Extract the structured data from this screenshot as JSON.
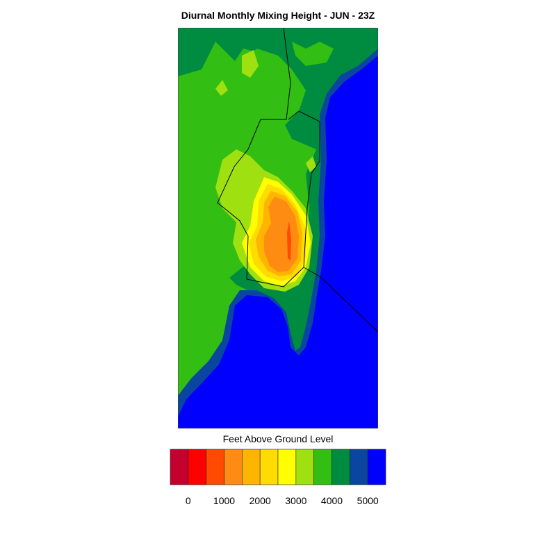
{
  "title": "Diurnal Monthly Mixing Height - JUN - 23Z",
  "colorbar": {
    "label": "Feet Above Ground Level",
    "colors": [
      "#c4002f",
      "#ff0000",
      "#ff4a00",
      "#ff8c12",
      "#ffb400",
      "#ffdc00",
      "#ffff00",
      "#9ee010",
      "#32be12",
      "#008c40",
      "#0a46a0",
      "#0000ff"
    ],
    "range": [
      -500,
      5500
    ],
    "ticks": [
      0,
      1000,
      2000,
      3000,
      4000,
      5000
    ]
  }
}
